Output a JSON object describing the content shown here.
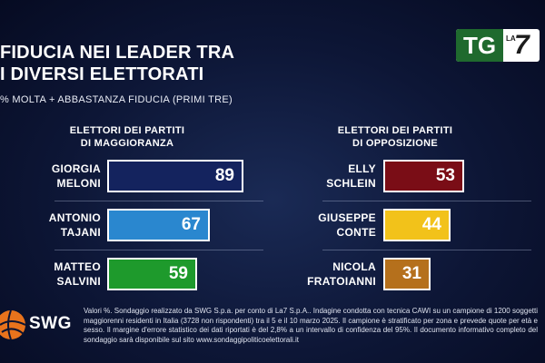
{
  "header": {
    "title_line1": "FIDUCIA NEI LEADER TRA",
    "title_line2": "I DIVERSI ELETTORATI",
    "subtitle": "% MOLTA + ABBASTANZA FIDUCIA (PRIMI TRE)"
  },
  "logo": {
    "tg": "TG",
    "la": "LA",
    "seven": "7"
  },
  "chart_data": {
    "type": "bar",
    "title": "FIDUCIA NEI LEADER TRA I DIVERSI ELETTORATI",
    "subtitle": "% MOLTA + ABBASTANZA FIDUCIA (PRIMI TRE)",
    "ylim": [
      0,
      100
    ],
    "groups": [
      {
        "header_line1": "ELETTORI DEI PARTITI",
        "header_line2": "DI MAGGIORANZA",
        "leaders": [
          {
            "first": "GIORGIA",
            "last": "MELONI",
            "value": 89,
            "color": "#14235e"
          },
          {
            "first": "ANTONIO",
            "last": "TAJANI",
            "value": 67,
            "color": "#2a87cf"
          },
          {
            "first": "MATTEO",
            "last": "SALVINI",
            "value": 59,
            "color": "#1e9a2c"
          }
        ]
      },
      {
        "header_line1": "ELETTORI DEI PARTITI",
        "header_line2": "DI OPPOSIZIONE",
        "leaders": [
          {
            "first": "ELLY",
            "last": "SCHLEIN",
            "value": 53,
            "color": "#7a0d16"
          },
          {
            "first": "GIUSEPPE",
            "last": "CONTE",
            "value": 44,
            "color": "#f2c21a"
          },
          {
            "first": "NICOLA",
            "last": "FRATOIANNI",
            "value": 31,
            "color": "#b5701c"
          }
        ]
      }
    ]
  },
  "footer": {
    "brand": "SWG",
    "note": "Valori %. Sondaggio realizzato da SWG S.p.a. per conto di La7 S.p.A.. Indagine condotta con tecnica CAWI su un campione di 1200 soggetti maggiorenni residenti in Italia (3728 non rispondenti) tra il 5 e il 10 marzo 2025. Il campione è stratificato per zona e prevede quote per età e sesso. Il margine d'errore statistico dei dati riportati è del 2,8% a un intervallo di confidenza del 95%. Il documento informativo completo del sondaggio sarà disponibile sul sito www.sondaggipoliticoelettorali.it"
  }
}
